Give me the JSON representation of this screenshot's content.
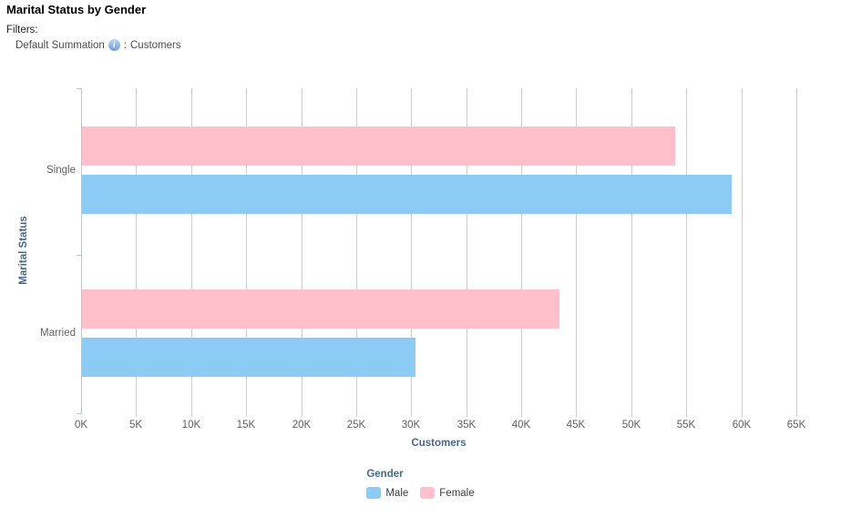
{
  "header": {
    "title": "Marital Status by Gender",
    "filters_label": "Filters:",
    "filter": {
      "name": "Default Summation",
      "info_icon": "info-icon",
      "separator": ":",
      "value": "Customers"
    }
  },
  "chart_data": {
    "type": "bar",
    "orientation": "horizontal",
    "title": "Marital Status by Gender",
    "categories": [
      "Single",
      "Married"
    ],
    "series": [
      {
        "name": "Male",
        "color": "#8cccf4",
        "values": [
          59000,
          30300
        ]
      },
      {
        "name": "Female",
        "color": "#ffc0cc",
        "values": [
          53900,
          43400
        ]
      }
    ],
    "bar_order_within_group": [
      "Female",
      "Male"
    ],
    "xlabel": "Customers",
    "ylabel": "Marital Status",
    "xlim": [
      0,
      65000
    ],
    "x_tick_step": 5000,
    "x_tick_labels": [
      "0K",
      "5K",
      "10K",
      "15K",
      "20K",
      "25K",
      "30K",
      "35K",
      "40K",
      "45K",
      "50K",
      "55K",
      "60K",
      "65K"
    ],
    "grid": "vertical",
    "legend": {
      "title": "Gender",
      "position": "bottom",
      "entries": [
        "Male",
        "Female"
      ]
    }
  },
  "colors": {
    "gridline": "#cdcdcd",
    "axis_line": "#b9c5d1",
    "axis_title_text": "#4a6785",
    "tick_label_text": "#5f5f5f"
  }
}
